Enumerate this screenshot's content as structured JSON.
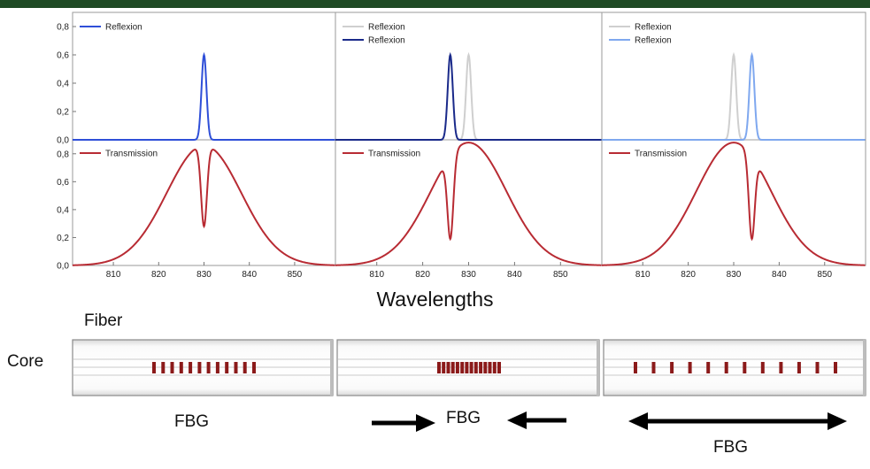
{
  "colors": {
    "top_bar": "#1e4a24",
    "reflexion_primary": "#2f4fd8",
    "reflexion_shifted_down": "#1a2a8a",
    "reflexion_shifted_up": "#7fa8ef",
    "reference_gray": "#cfcfcf",
    "transmission": "#b82b33",
    "fbg_mark": "#8b1a1a"
  },
  "chart_data": [
    {
      "type": "line",
      "panel": "left",
      "xlim": [
        801,
        859
      ],
      "ylim_top": [
        0,
        0.9
      ],
      "ylim_bottom": [
        0,
        0.9
      ],
      "x_ticks": [
        810,
        820,
        830,
        840,
        850
      ],
      "y_ticks": [
        "0,0",
        "0,2",
        "0,4",
        "0,6",
        "0,8"
      ],
      "reflexion_series": [
        {
          "name": "Reflexion",
          "color": "reflexion_primary",
          "peak_x": 830,
          "peak_y": 0.6
        }
      ],
      "transmission": {
        "name": "Transmission",
        "dip_x": 830,
        "dip_min": 0.28,
        "max": 0.86
      }
    },
    {
      "type": "line",
      "panel": "middle",
      "xlim": [
        801,
        859
      ],
      "ylim_top": [
        0,
        0.9
      ],
      "ylim_bottom": [
        0,
        0.9
      ],
      "x_ticks": [
        810,
        820,
        830,
        840,
        850
      ],
      "reflexion_series": [
        {
          "name": "Reflexion",
          "color": "reference_gray",
          "peak_x": 830,
          "peak_y": 0.6
        },
        {
          "name": "Reflexion",
          "color": "reflexion_shifted_down",
          "peak_x": 826,
          "peak_y": 0.6
        }
      ],
      "transmission": {
        "name": "Transmission",
        "dip_x": 826,
        "dip_min": 0.19,
        "max": 0.88
      }
    },
    {
      "type": "line",
      "panel": "right",
      "xlim": [
        801,
        859
      ],
      "ylim_top": [
        0,
        0.9
      ],
      "ylim_bottom": [
        0,
        0.9
      ],
      "x_ticks": [
        810,
        820,
        830,
        840,
        850
      ],
      "reflexion_series": [
        {
          "name": "Reflexion",
          "color": "reference_gray",
          "peak_x": 830,
          "peak_y": 0.6
        },
        {
          "name": "Reflexion",
          "color": "reflexion_shifted_up",
          "peak_x": 834,
          "peak_y": 0.6
        }
      ],
      "transmission": {
        "name": "Transmission",
        "dip_x": 834,
        "dip_min": 0.19,
        "max": 0.88
      }
    }
  ],
  "x_axis_label": "Wavelengths",
  "fiber_label": "Fiber",
  "core_label": "Core",
  "fiber_sections": [
    {
      "label": "FBG",
      "grating_count": 12,
      "arrows": "none"
    },
    {
      "label": "FBG",
      "grating_count": 14,
      "arrows": "compress"
    },
    {
      "label": "FBG",
      "grating_count": 12,
      "arrows": "stretch"
    }
  ]
}
